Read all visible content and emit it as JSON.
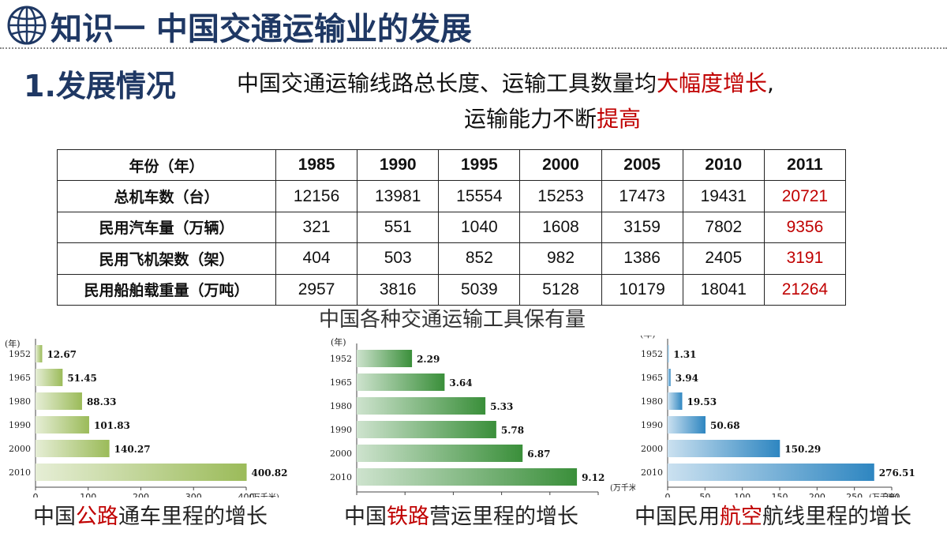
{
  "header": {
    "title": "知识一 中国交通运输业的发展"
  },
  "section": {
    "number": "1.发展情况",
    "line1_a": "中国交通运输线路总长度、运输工具数量均",
    "line1_b": "大幅度增长",
    "line1_c": ",",
    "line2_a": "运输能力不断",
    "line2_b": "提高"
  },
  "table": {
    "header": [
      "年份（年）",
      "1985",
      "1990",
      "1995",
      "2000",
      "2005",
      "2010",
      "2011"
    ],
    "rows": [
      [
        "总机车数（台）",
        "12156",
        "13981",
        "15554",
        "15253",
        "17473",
        "19431",
        "20721"
      ],
      [
        "民用汽车量（万辆）",
        "321",
        "551",
        "1040",
        "1608",
        "3159",
        "7802",
        "9356"
      ],
      [
        "民用飞机架数（架）",
        "404",
        "503",
        "852",
        "982",
        "1386",
        "2405",
        "3191"
      ],
      [
        "民用船舶载重量（万吨）",
        "2957",
        "3816",
        "5039",
        "5128",
        "10179",
        "18041",
        "21264"
      ]
    ],
    "highlight_color": "#c00000"
  },
  "caption": "中国各种交通运输工具保有量",
  "chart_data": [
    {
      "type": "bar",
      "orientation": "horizontal",
      "categories": [
        "1952",
        "1965",
        "1980",
        "1990",
        "2000",
        "2010"
      ],
      "values": [
        12.67,
        51.45,
        88.33,
        101.83,
        140.27,
        400.82
      ],
      "xlim": [
        0,
        400
      ],
      "xticks": [
        "0",
        "100",
        "200",
        "300",
        "400"
      ],
      "year_label": "(年)",
      "unit_label": "(万千米)",
      "color": "#9bbb59",
      "title_a": "中国",
      "title_b": "公路",
      "title_c": "通车里程的增长"
    },
    {
      "type": "bar",
      "orientation": "horizontal",
      "categories": [
        "1952",
        "1965",
        "1980",
        "1990",
        "2000",
        "2010"
      ],
      "values": [
        2.29,
        3.64,
        5.33,
        5.78,
        6.87,
        9.12
      ],
      "xlim": [
        0,
        10
      ],
      "xticks": [
        "0",
        "2",
        "4",
        "6",
        "8",
        "10"
      ],
      "year_label": "(年)",
      "unit_label": "(万千米)",
      "color": "#3a8f3a",
      "title_a": "中国",
      "title_b": "铁路",
      "title_c": "营运里程的增长"
    },
    {
      "type": "bar",
      "orientation": "horizontal",
      "categories": [
        "1952",
        "1965",
        "1980",
        "1990",
        "2000",
        "2010"
      ],
      "values": [
        1.31,
        3.94,
        19.53,
        50.68,
        150.29,
        276.51
      ],
      "xlim": [
        0,
        300
      ],
      "xticks": [
        "0",
        "50",
        "100",
        "150",
        "200",
        "250",
        "300"
      ],
      "year_label": "(年)",
      "unit_label": "(万千米)",
      "color": "#2e86c1",
      "title_a": "中国民用",
      "title_b": "航空",
      "title_c": "航线里程的增长"
    }
  ]
}
